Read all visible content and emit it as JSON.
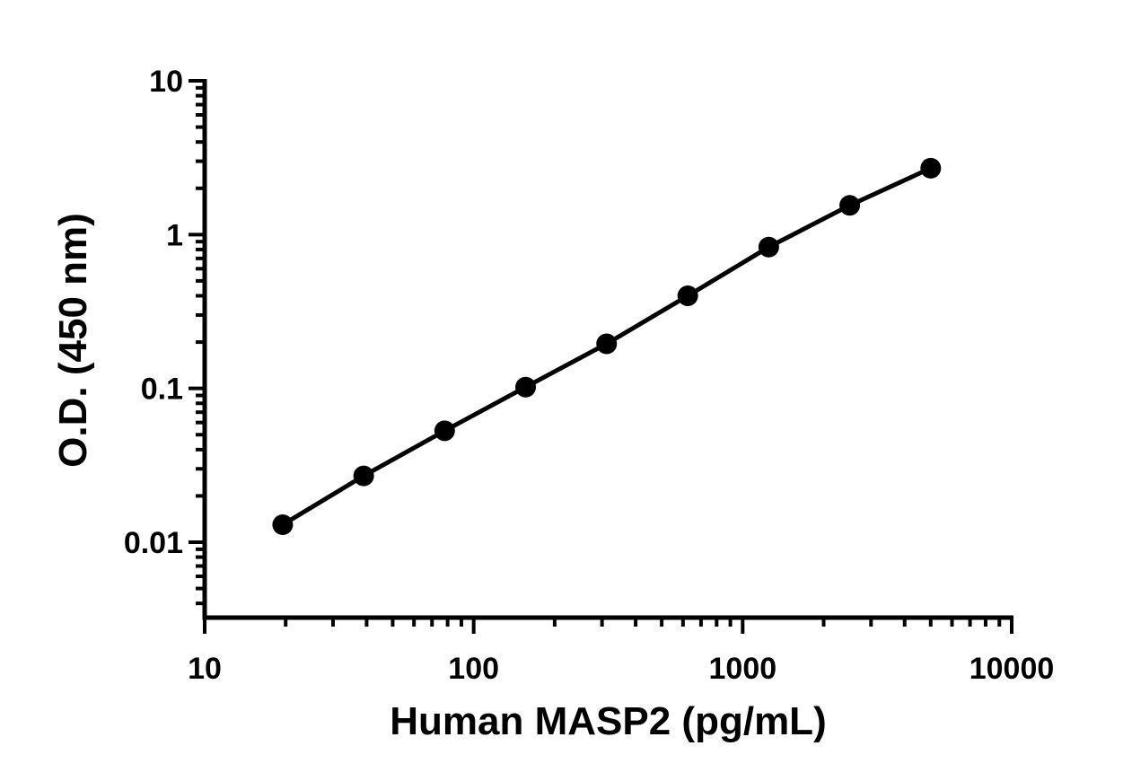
{
  "chart_data": {
    "type": "scatter",
    "xlabel": "Human MASP2 (pg/mL)",
    "ylabel": "O.D. (450 nm)",
    "x_scale": "log",
    "y_scale": "log",
    "xlim": [
      10,
      10000
    ],
    "ylim": [
      0.003,
      10
    ],
    "x_ticks": [
      10,
      100,
      1000,
      10000
    ],
    "x_tick_labels": [
      "10",
      "100",
      "1000",
      "10000"
    ],
    "y_ticks": [
      0.01,
      0.1,
      1,
      10
    ],
    "y_tick_labels": [
      "0.01",
      "0.1",
      "1",
      "10"
    ],
    "grid": false,
    "series": [
      {
        "x": [
          19.5,
          39,
          78,
          156,
          312,
          625,
          1250,
          2500,
          5000
        ],
        "y": [
          0.013,
          0.027,
          0.053,
          0.102,
          0.195,
          0.4,
          0.83,
          1.55,
          2.7
        ],
        "marker": "circle",
        "line": "fit",
        "color": "#000000"
      }
    ]
  }
}
